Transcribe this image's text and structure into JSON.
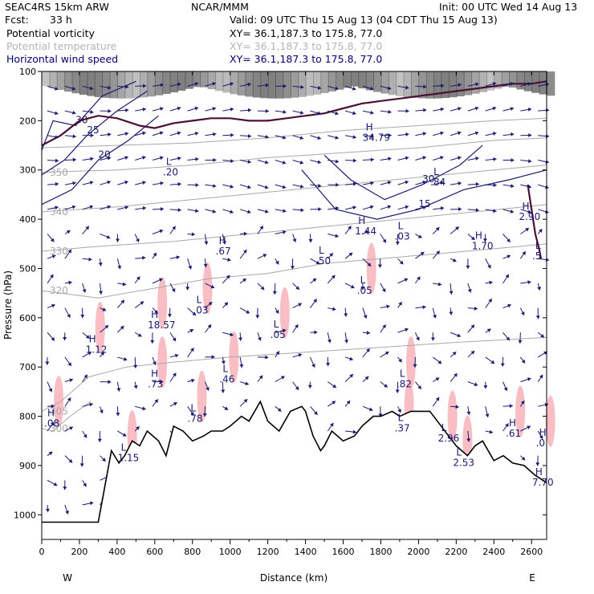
{
  "header": {
    "model": "SEAC4RS 15km ARW",
    "org": "NCAR/MMM",
    "init": "Init: 00 UTC Wed 14 Aug 13",
    "fcst_label": "Fcst:",
    "fcst_value": "33 h",
    "valid": "Valid: 09 UTC Thu 15 Aug 13 (04 CDT Thu 15 Aug 13)"
  },
  "fields": [
    {
      "name": "Potential vorticity",
      "xy": "XY=  36.1,187.3 to 175.8, 77.0",
      "color": "#000000"
    },
    {
      "name": "Potential temperature",
      "xy": "XY=  36.1,187.3 to 175.8, 77.0",
      "color": "#b4b4b4"
    },
    {
      "name": "Horizontal wind speed",
      "xy": "XY=  36.1,187.3 to 175.8, 77.0",
      "color": "#000070"
    }
  ],
  "colors": {
    "wind": "#191970",
    "theta": "#a8a8a8",
    "pv": "#4a1035",
    "terrain": "#000000",
    "pink": "#f7b3b8",
    "gray_shade": "#555555"
  },
  "chart_data": {
    "type": "cross-section",
    "xlabel": "Distance (km)",
    "ylabel": "Pressure (hPa)",
    "xlim": [
      0,
      2680
    ],
    "ylim": [
      1050,
      100
    ],
    "xticks": [
      0,
      200,
      400,
      600,
      800,
      1000,
      1200,
      1400,
      1600,
      1800,
      2000,
      2200,
      2400,
      2600
    ],
    "yticks": [
      100,
      200,
      300,
      400,
      500,
      600,
      700,
      800,
      900,
      1000
    ],
    "west_label": "W",
    "east_label": "E",
    "terrain": [
      [
        0,
        1015
      ],
      [
        300,
        1015
      ],
      [
        370,
        870
      ],
      [
        410,
        895
      ],
      [
        440,
        880
      ],
      [
        480,
        850
      ],
      [
        520,
        860
      ],
      [
        560,
        830
      ],
      [
        620,
        850
      ],
      [
        660,
        880
      ],
      [
        700,
        820
      ],
      [
        750,
        830
      ],
      [
        800,
        850
      ],
      [
        860,
        840
      ],
      [
        900,
        830
      ],
      [
        960,
        830
      ],
      [
        1000,
        820
      ],
      [
        1060,
        800
      ],
      [
        1100,
        810
      ],
      [
        1160,
        770
      ],
      [
        1200,
        810
      ],
      [
        1260,
        830
      ],
      [
        1320,
        790
      ],
      [
        1380,
        780
      ],
      [
        1400,
        790
      ],
      [
        1440,
        840
      ],
      [
        1480,
        870
      ],
      [
        1500,
        860
      ],
      [
        1540,
        830
      ],
      [
        1600,
        850
      ],
      [
        1660,
        840
      ],
      [
        1700,
        820
      ],
      [
        1760,
        800
      ],
      [
        1800,
        800
      ],
      [
        1860,
        790
      ],
      [
        1900,
        800
      ],
      [
        1960,
        790
      ],
      [
        2000,
        790
      ],
      [
        2060,
        790
      ],
      [
        2100,
        810
      ],
      [
        2200,
        860
      ],
      [
        2260,
        880
      ],
      [
        2300,
        860
      ],
      [
        2340,
        850
      ],
      [
        2400,
        890
      ],
      [
        2450,
        880
      ],
      [
        2500,
        895
      ],
      [
        2560,
        900
      ],
      [
        2620,
        920
      ],
      [
        2680,
        935
      ]
    ],
    "wind_contours": [
      {
        "label": "30",
        "points": [
          [
            0,
            260
          ],
          [
            60,
            200
          ],
          [
            180,
            210
          ],
          [
            320,
            150
          ],
          [
            500,
            120
          ]
        ]
      },
      {
        "label": "25",
        "points": [
          [
            0,
            310
          ],
          [
            120,
            280
          ],
          [
            240,
            230
          ],
          [
            400,
            180
          ],
          [
            560,
            140
          ]
        ]
      },
      {
        "label": "20",
        "points": [
          [
            0,
            370
          ],
          [
            160,
            340
          ],
          [
            300,
            280
          ],
          [
            460,
            240
          ],
          [
            620,
            190
          ]
        ]
      },
      {
        "label": "30",
        "points": [
          [
            1500,
            270
          ],
          [
            1640,
            320
          ],
          [
            1820,
            360
          ],
          [
            2020,
            330
          ],
          [
            2220,
            290
          ],
          [
            2340,
            250
          ]
        ]
      },
      {
        "label": "15",
        "points": [
          [
            1380,
            300
          ],
          [
            1560,
            380
          ],
          [
            1780,
            400
          ],
          [
            2000,
            380
          ],
          [
            2240,
            340
          ],
          [
            2480,
            320
          ],
          [
            2680,
            300
          ]
        ]
      }
    ],
    "theta_contours": [
      {
        "label": "320",
        "points": [
          [
            0,
            545
          ],
          [
            300,
            560
          ],
          [
            600,
            540
          ],
          [
            900,
            520
          ],
          [
            1200,
            510
          ],
          [
            1500,
            490
          ],
          [
            1800,
            480
          ],
          [
            2100,
            470
          ],
          [
            2400,
            460
          ],
          [
            2680,
            450
          ]
        ]
      },
      {
        "label": "305",
        "points": [
          [
            0,
            790
          ],
          [
            100,
            770
          ],
          [
            250,
            720
          ],
          [
            450,
            700
          ],
          [
            700,
            690
          ],
          [
            1000,
            680
          ],
          [
            1400,
            670
          ],
          [
            1800,
            660
          ],
          [
            2200,
            650
          ],
          [
            2680,
            640
          ]
        ]
      },
      {
        "label": "300",
        "points": [
          [
            0,
            825
          ],
          [
            60,
            830
          ],
          [
            150,
            800
          ],
          [
            260,
            770
          ]
        ]
      },
      {
        "label": "330",
        "points": [
          [
            0,
            465
          ],
          [
            300,
            455
          ],
          [
            700,
            445
          ],
          [
            1100,
            430
          ],
          [
            1500,
            415
          ],
          [
            1900,
            400
          ],
          [
            2300,
            385
          ],
          [
            2680,
            370
          ]
        ]
      },
      {
        "label": "340",
        "points": [
          [
            0,
            385
          ],
          [
            400,
            375
          ],
          [
            800,
            360
          ],
          [
            1200,
            345
          ],
          [
            1600,
            330
          ],
          [
            2000,
            315
          ],
          [
            2400,
            300
          ],
          [
            2680,
            290
          ]
        ]
      },
      {
        "label": "350",
        "points": [
          [
            0,
            305
          ],
          [
            400,
            300
          ],
          [
            800,
            290
          ],
          [
            1200,
            275
          ],
          [
            1600,
            265
          ],
          [
            2000,
            255
          ],
          [
            2400,
            240
          ],
          [
            2680,
            235
          ]
        ]
      },
      {
        "label": "",
        "points": [
          [
            0,
            255
          ],
          [
            400,
            250
          ],
          [
            800,
            245
          ],
          [
            1200,
            235
          ],
          [
            1600,
            220
          ],
          [
            2000,
            210
          ],
          [
            2400,
            200
          ],
          [
            2680,
            195
          ]
        ]
      }
    ],
    "pv_contours": [
      {
        "label": "",
        "points": [
          [
            0,
            250
          ],
          [
            100,
            230
          ],
          [
            200,
            200
          ],
          [
            300,
            190
          ],
          [
            400,
            195
          ],
          [
            520,
            210
          ],
          [
            600,
            215
          ],
          [
            700,
            205
          ],
          [
            800,
            200
          ],
          [
            900,
            195
          ],
          [
            1000,
            195
          ],
          [
            1100,
            200
          ],
          [
            1200,
            200
          ],
          [
            1300,
            195
          ],
          [
            1400,
            190
          ],
          [
            1500,
            185
          ],
          [
            1600,
            175
          ],
          [
            1700,
            165
          ],
          [
            1800,
            160
          ],
          [
            1900,
            155
          ],
          [
            2000,
            150
          ],
          [
            2100,
            145
          ],
          [
            2200,
            140
          ],
          [
            2300,
            135
          ],
          [
            2400,
            130
          ],
          [
            2500,
            125
          ],
          [
            2600,
            125
          ],
          [
            2680,
            120
          ]
        ]
      },
      {
        "label": "",
        "points": [
          [
            2580,
            330
          ],
          [
            2600,
            380
          ],
          [
            2620,
            430
          ],
          [
            2640,
            460
          ],
          [
            2650,
            480
          ]
        ]
      }
    ],
    "extrema": [
      {
        "type": "H",
        "label": "1.12",
        "x": 250,
        "p": 650
      },
      {
        "type": "H",
        "label": "18.57",
        "x": 580,
        "p": 600
      },
      {
        "type": "H",
        "label": ".73",
        "x": 580,
        "p": 720
      },
      {
        "type": "L",
        "label": ".03",
        "x": 820,
        "p": 570
      },
      {
        "type": "H",
        "label": ".67",
        "x": 940,
        "p": 450
      },
      {
        "type": "L",
        "label": ".46",
        "x": 960,
        "p": 710
      },
      {
        "type": "L",
        "label": ".78",
        "x": 790,
        "p": 790
      },
      {
        "type": "L",
        "label": ".05",
        "x": 1230,
        "p": 620
      },
      {
        "type": "L",
        "label": ".50",
        "x": 1470,
        "p": 470
      },
      {
        "type": "L",
        "label": ".05",
        "x": 1690,
        "p": 530
      },
      {
        "type": "H",
        "label": "1.44",
        "x": 1680,
        "p": 410
      },
      {
        "type": "L",
        "label": ".03",
        "x": 1890,
        "p": 420
      },
      {
        "type": "L",
        "label": ".82",
        "x": 1900,
        "p": 720
      },
      {
        "type": "H",
        "label": "1.70",
        "x": 2300,
        "p": 440
      },
      {
        "type": "H",
        "label": "2.90",
        "x": 2550,
        "p": 380
      },
      {
        "type": "L",
        "label": ".5",
        "x": 2620,
        "p": 460
      },
      {
        "type": "L",
        "label": "2.96",
        "x": 2120,
        "p": 830
      },
      {
        "type": "L",
        "label": "2.53",
        "x": 2200,
        "p": 880
      },
      {
        "type": "H",
        "label": ".61",
        "x": 2480,
        "p": 820
      },
      {
        "type": "H",
        "label": ".0",
        "x": 2640,
        "p": 840
      },
      {
        "type": "H",
        "label": "7.70",
        "x": 2620,
        "p": 920
      },
      {
        "type": "L",
        "label": ".20",
        "x": 660,
        "p": 290
      },
      {
        "type": "H",
        "label": "34.79",
        "x": 1720,
        "p": 220
      },
      {
        "type": "L",
        "label": ".84",
        "x": 2080,
        "p": 310
      },
      {
        "type": "H",
        "label": ".08",
        "x": 30,
        "p": 800
      },
      {
        "type": "L",
        "label": "1.15",
        "x": 420,
        "p": 870
      },
      {
        "type": "L",
        "label": ".37",
        "x": 1890,
        "p": 810
      }
    ]
  }
}
